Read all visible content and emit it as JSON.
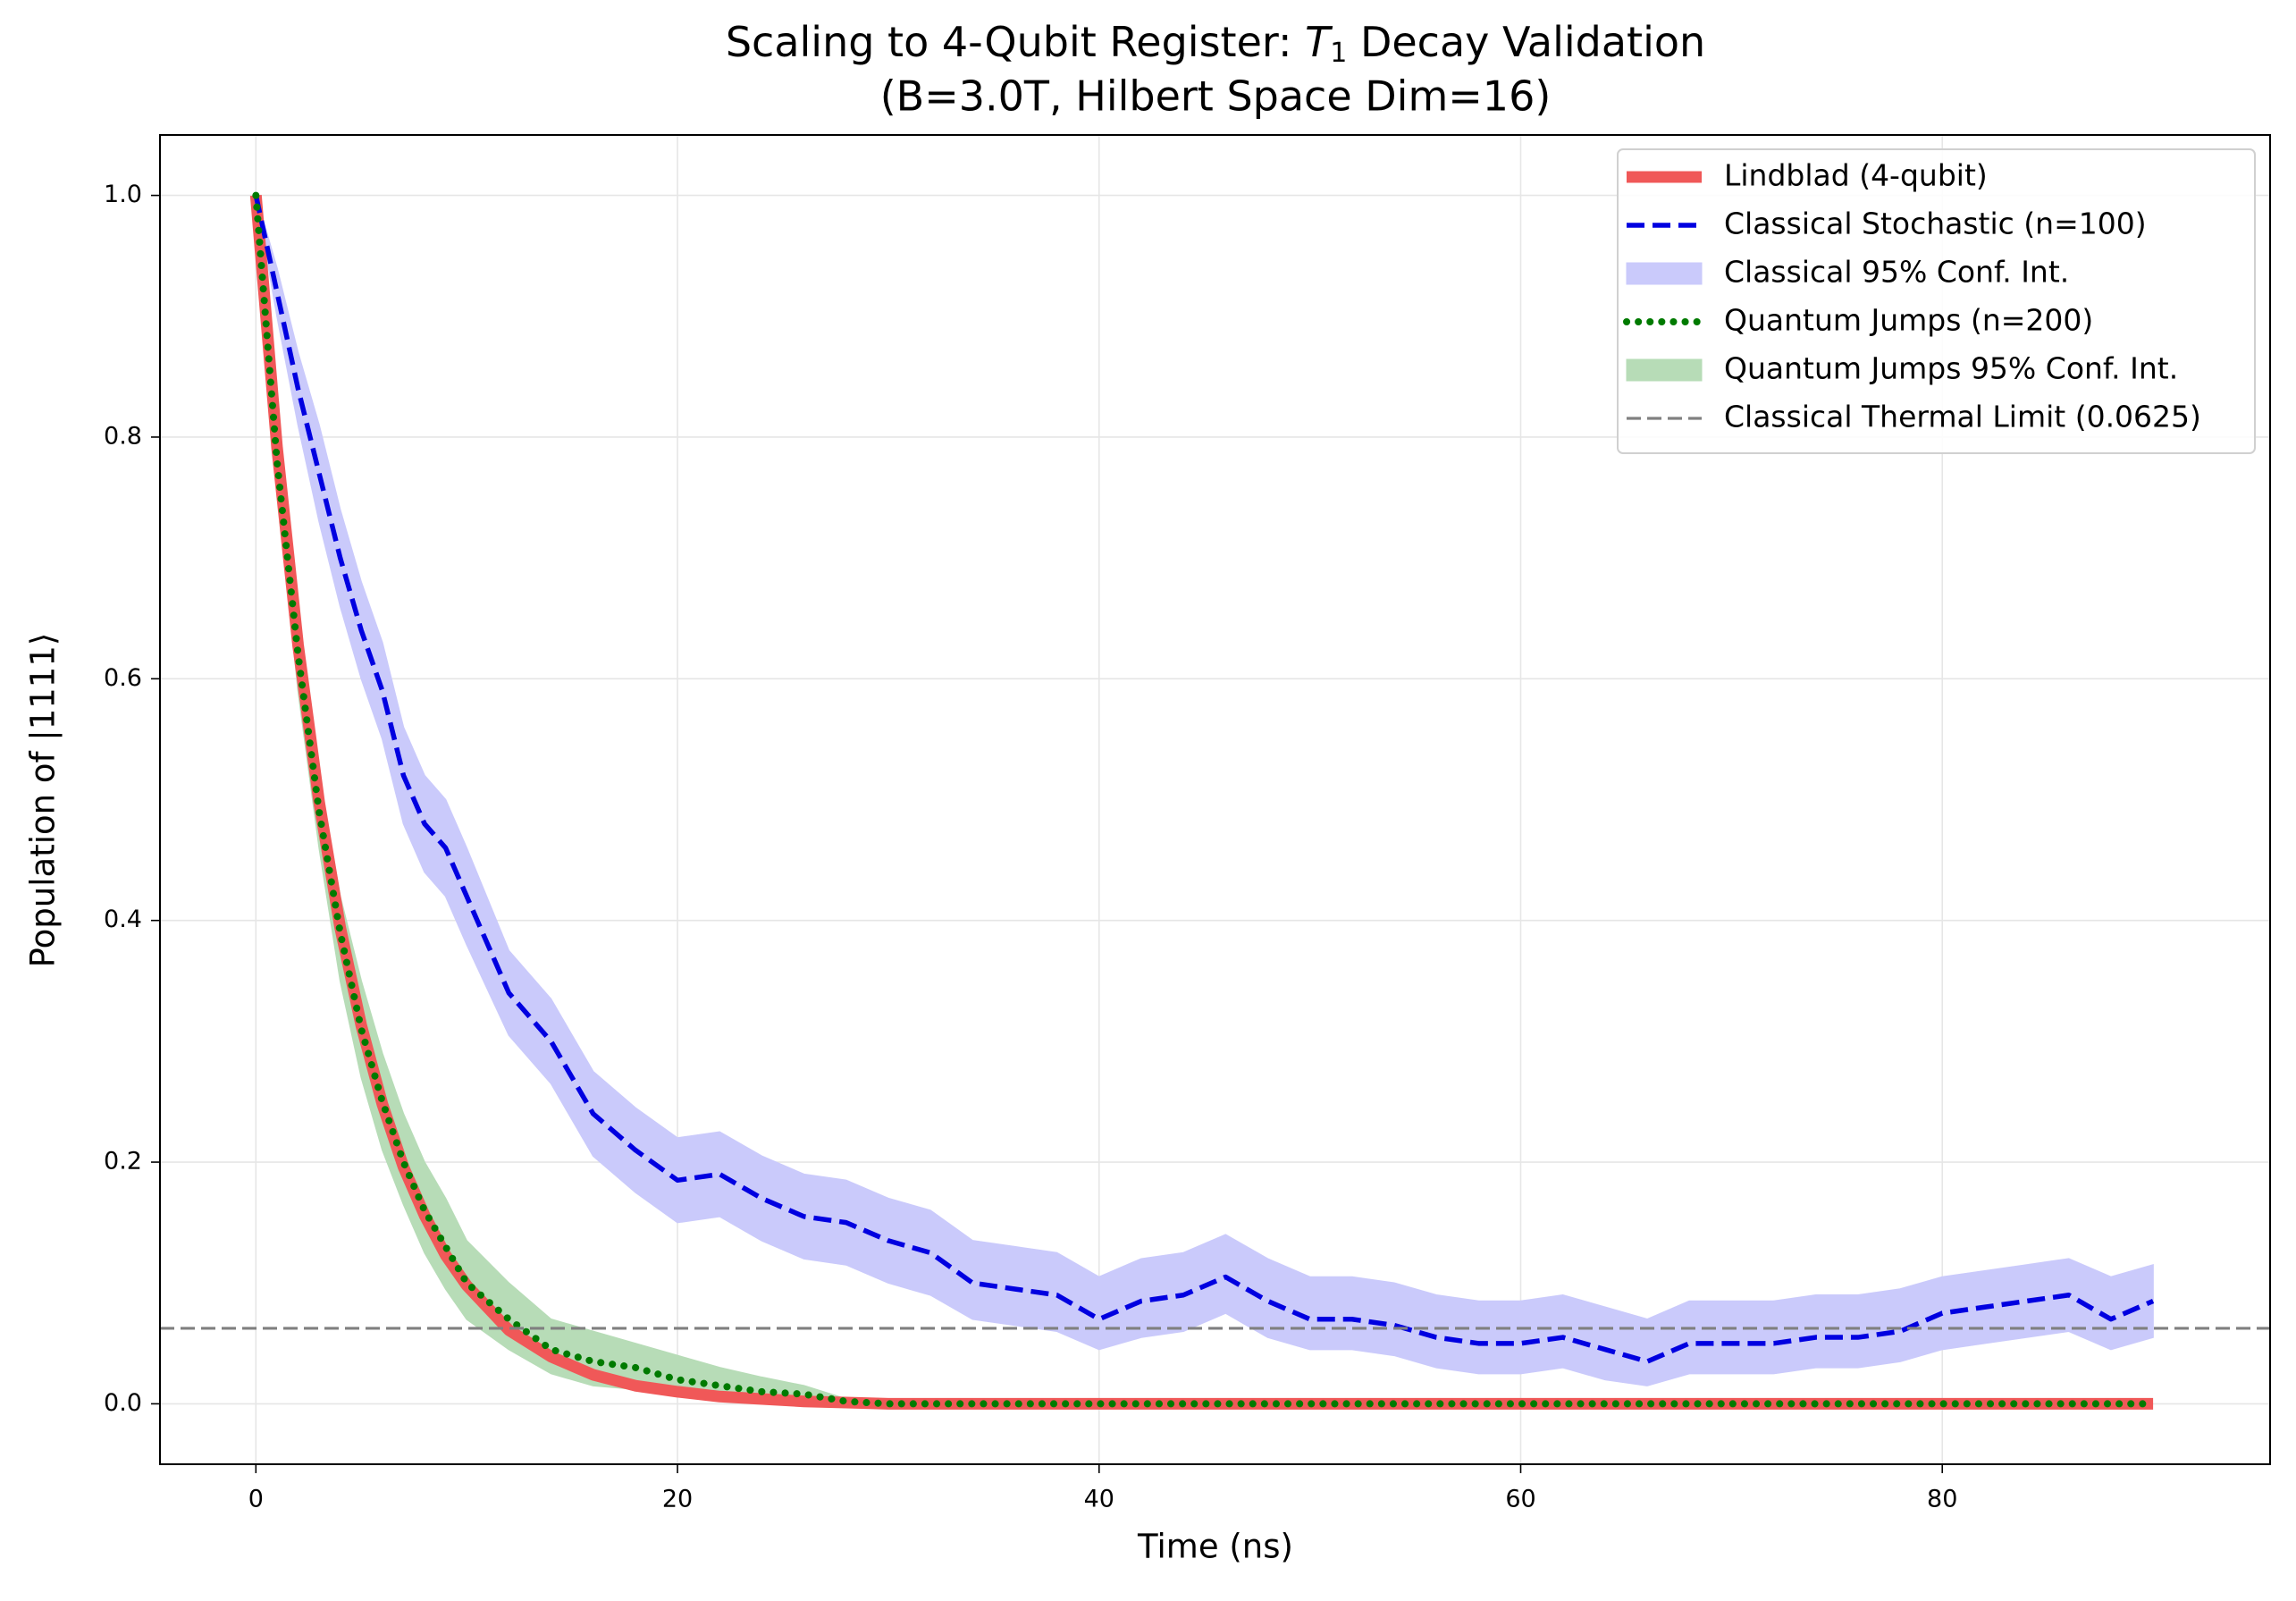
{
  "chart_data": {
    "type": "line",
    "title": [
      "Scaling to 4-Qubit Register: ",
      "T",
      "1",
      " Decay Validation"
    ],
    "subtitle": "(B=3.0T, Hilbert Space Dim=16)",
    "xlabel": "Time (ns)",
    "ylabel": "Population of |1111⟩",
    "xlim": [
      -4.55,
      95.55
    ],
    "ylim": [
      -0.05,
      1.05
    ],
    "xticks": [
      0,
      20,
      40,
      60,
      80
    ],
    "yticks": [
      {
        "value": 0,
        "label": "0.0"
      },
      {
        "value": 0.2,
        "label": "0.2"
      },
      {
        "value": 0.4,
        "label": "0.4"
      },
      {
        "value": 0.6,
        "label": "0.6"
      },
      {
        "value": 0.8,
        "label": "0.8"
      },
      {
        "value": 1,
        "label": "1.0"
      }
    ],
    "grid": true,
    "legend": "upper right",
    "x": [
      0,
      1,
      2,
      3,
      4,
      5,
      6,
      7,
      8,
      9,
      10,
      12,
      14,
      16,
      18,
      20,
      22,
      24,
      26,
      28,
      30,
      32,
      34,
      36,
      38,
      40,
      42,
      44,
      46,
      48,
      50,
      52,
      54,
      56,
      58,
      60,
      62,
      64,
      66,
      68,
      70,
      72,
      74,
      76,
      78,
      80,
      82,
      84,
      86,
      88,
      90
    ],
    "series": [
      {
        "name": "Lindblad (4-qubit)",
        "type": "line",
        "style": "solid",
        "color": "#f05858",
        "values": [
          1,
          0.792,
          0.628,
          0.498,
          0.394,
          0.313,
          0.248,
          0.196,
          0.156,
          0.123,
          0.098,
          0.061,
          0.039,
          0.024,
          0.015,
          0.01,
          0.006,
          0.004,
          0.002,
          0.001,
          0,
          0,
          0,
          0,
          0,
          0,
          0,
          0,
          0,
          0,
          0,
          0,
          0,
          0,
          0,
          0,
          0,
          0,
          0,
          0,
          0,
          0,
          0,
          0,
          0,
          0,
          0,
          0,
          0,
          0,
          0
        ]
      },
      {
        "name": "Classical Stochastic (n=100)",
        "type": "line",
        "style": "dashed",
        "color": "#0000e0",
        "values": [
          1,
          0.92,
          0.84,
          0.77,
          0.7,
          0.64,
          0.59,
          0.52,
          0.48,
          0.46,
          0.42,
          0.34,
          0.3,
          0.24,
          0.21,
          0.185,
          0.19,
          0.17,
          0.155,
          0.15,
          0.135,
          0.125,
          0.1,
          0.095,
          0.09,
          0.07,
          0.085,
          0.09,
          0.105,
          0.085,
          0.07,
          0.07,
          0.065,
          0.055,
          0.05,
          0.05,
          0.055,
          0.045,
          0.035,
          0.05,
          0.05,
          0.05,
          0.055,
          0.055,
          0.06,
          0.075,
          0.08,
          0.085,
          0.09,
          0.07,
          0.085
        ]
      },
      {
        "name": "Classical 95% Conf. Int.",
        "type": "band",
        "color": "#cacafb",
        "lower": [
          1,
          0.9,
          0.81,
          0.73,
          0.66,
          0.6,
          0.55,
          0.48,
          0.44,
          0.42,
          0.38,
          0.305,
          0.265,
          0.205,
          0.175,
          0.15,
          0.155,
          0.135,
          0.12,
          0.115,
          0.1,
          0.09,
          0.07,
          0.065,
          0.06,
          0.045,
          0.055,
          0.06,
          0.075,
          0.055,
          0.045,
          0.045,
          0.04,
          0.03,
          0.025,
          0.025,
          0.03,
          0.02,
          0.015,
          0.025,
          0.025,
          0.025,
          0.03,
          0.03,
          0.035,
          0.045,
          0.05,
          0.055,
          0.06,
          0.045,
          0.055
        ],
        "upper": [
          1,
          0.94,
          0.87,
          0.81,
          0.74,
          0.68,
          0.63,
          0.56,
          0.52,
          0.5,
          0.46,
          0.375,
          0.335,
          0.275,
          0.245,
          0.22,
          0.225,
          0.205,
          0.19,
          0.185,
          0.17,
          0.16,
          0.135,
          0.13,
          0.125,
          0.105,
          0.12,
          0.125,
          0.14,
          0.12,
          0.105,
          0.105,
          0.1,
          0.09,
          0.085,
          0.085,
          0.09,
          0.08,
          0.07,
          0.085,
          0.085,
          0.085,
          0.09,
          0.09,
          0.095,
          0.105,
          0.11,
          0.115,
          0.12,
          0.105,
          0.115
        ]
      },
      {
        "name": "Quantum Jumps (n=200)",
        "type": "line",
        "style": "dotted",
        "color": "#007a00",
        "values": [
          1,
          0.78,
          0.62,
          0.49,
          0.39,
          0.31,
          0.25,
          0.2,
          0.16,
          0.13,
          0.1,
          0.07,
          0.045,
          0.035,
          0.03,
          0.02,
          0.015,
          0.01,
          0.008,
          0.002,
          0,
          0,
          0,
          0,
          0,
          0,
          0,
          0,
          0,
          0,
          0,
          0,
          0,
          0,
          0,
          0,
          0,
          0,
          0,
          0,
          0,
          0,
          0,
          0,
          0,
          0,
          0,
          0,
          0,
          0,
          0
        ]
      },
      {
        "name": "Quantum Jumps 95% Conf. Int.",
        "type": "band",
        "color": "#b7dcb7",
        "lower": [
          1,
          0.76,
          0.59,
          0.46,
          0.35,
          0.27,
          0.21,
          0.165,
          0.125,
          0.095,
          0.07,
          0.045,
          0.025,
          0.015,
          0.012,
          0.008,
          0.005,
          0.002,
          0.001,
          0,
          0,
          0,
          0,
          0,
          0,
          0,
          0,
          0,
          0,
          0,
          0,
          0,
          0,
          0,
          0,
          0,
          0,
          0,
          0,
          0,
          0,
          0,
          0,
          0,
          0,
          0,
          0,
          0,
          0,
          0,
          0
        ],
        "upper": [
          1,
          0.8,
          0.65,
          0.52,
          0.42,
          0.35,
          0.29,
          0.24,
          0.2,
          0.17,
          0.135,
          0.1,
          0.07,
          0.06,
          0.05,
          0.04,
          0.03,
          0.022,
          0.015,
          0.004,
          0,
          0,
          0,
          0,
          0,
          0,
          0,
          0,
          0,
          0,
          0,
          0,
          0,
          0,
          0,
          0,
          0,
          0,
          0,
          0,
          0,
          0,
          0,
          0,
          0,
          0,
          0,
          0,
          0,
          0,
          0
        ]
      },
      {
        "name": "Classical Thermal Limit (0.0625)",
        "type": "hline",
        "style": "dashed",
        "color": "#808080",
        "value": 0.0625
      }
    ]
  }
}
